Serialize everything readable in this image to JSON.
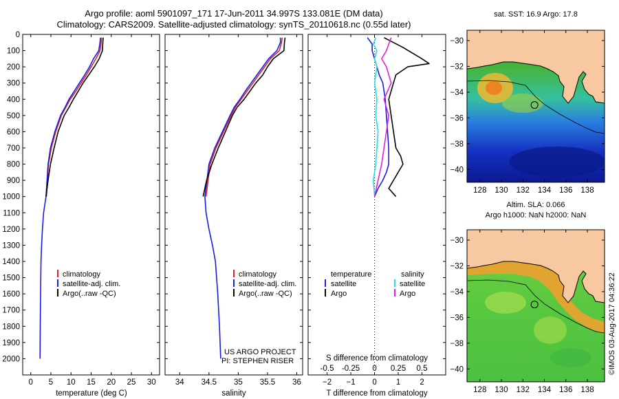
{
  "header": {
    "title_line1": "Argo profile: aoml 5901097_171 17-Jun-2011 34.997S 133.081E (DM data)",
    "title_line2": "Climatology: CARS2009. Satellite-adjusted climatology: synTS_20110618.nc (0.55d later)"
  },
  "colors": {
    "climatology": "#e02020",
    "satellite_temp": "#1a1ae6",
    "argo": "#000000",
    "satellite_sal": "#22e0e0",
    "argo_sal": "#e020e0",
    "land": "#f8c8a0"
  },
  "chart_data": [
    {
      "type": "line",
      "name": "temperature-profile",
      "xlabel": "temperature (deg C)",
      "ylabel": "",
      "xlim": [
        -2,
        32
      ],
      "ylim": [
        2100,
        0
      ],
      "xticks": [
        0,
        5,
        10,
        15,
        20,
        25,
        30
      ],
      "yticks": [
        0,
        100,
        200,
        300,
        400,
        500,
        600,
        700,
        800,
        900,
        1000,
        1100,
        1200,
        1300,
        1400,
        1500,
        1600,
        1700,
        1800,
        1900,
        2000
      ],
      "legend": [
        "climatology",
        "satellite-adj. clim.",
        "Argo(..raw -QC)"
      ],
      "series": [
        {
          "name": "climatology",
          "color_key": "climatology",
          "x": [
            17.6,
            17.5,
            17.2,
            16.2,
            15.0,
            13.8,
            12.5,
            11.2,
            9.8,
            8.7,
            7.6,
            6.2,
            5.1,
            4.4,
            3.9
          ],
          "y": [
            20,
            50,
            100,
            150,
            200,
            250,
            300,
            350,
            400,
            450,
            500,
            600,
            700,
            800,
            1000
          ]
        },
        {
          "name": "satellite-adj. clim.",
          "color_key": "satellite_temp",
          "x": [
            17.3,
            17.2,
            16.9,
            15.6,
            14.6,
            13.4,
            12.1,
            10.8,
            9.5,
            8.5,
            7.4,
            6.0,
            4.9,
            4.3,
            3.8,
            3.2,
            2.9,
            2.7,
            2.55,
            2.45,
            2.35,
            2.3
          ],
          "y": [
            20,
            50,
            100,
            150,
            200,
            250,
            300,
            350,
            400,
            450,
            500,
            600,
            700,
            800,
            1000,
            1100,
            1200,
            1300,
            1400,
            1600,
            1800,
            2000
          ]
        },
        {
          "name": "Argo(..raw -QC)",
          "color_key": "argo",
          "x": [
            18.0,
            17.9,
            17.8,
            17.0,
            15.8,
            14.4,
            13.0,
            11.8,
            10.6,
            9.5,
            8.3,
            6.8,
            5.8,
            4.9,
            4.3,
            3.8
          ],
          "y": [
            20,
            50,
            100,
            150,
            200,
            250,
            300,
            350,
            400,
            450,
            500,
            600,
            700,
            800,
            900,
            1000
          ]
        }
      ]
    },
    {
      "type": "line",
      "name": "salinity-profile",
      "xlabel": "salinity",
      "ylabel": "",
      "xlim": [
        33.75,
        36.1
      ],
      "ylim": [
        2100,
        0
      ],
      "xticks": [
        34,
        34.5,
        35,
        35.5,
        36
      ],
      "xtick_labels": [
        "34",
        "34.5",
        "35",
        "35.5",
        "36"
      ],
      "legend": [
        "climatology",
        "satellite-adj. clim.",
        "Argo(..raw -QC)"
      ],
      "annotation": [
        "US ARGO PROJECT",
        "PI: STEPHEN RISER"
      ],
      "series": [
        {
          "name": "climatology",
          "color_key": "climatology",
          "x": [
            35.75,
            35.74,
            35.7,
            35.55,
            35.45,
            35.35,
            35.25,
            35.15,
            35.05,
            34.95,
            34.88,
            34.75,
            34.62,
            34.52,
            34.45
          ],
          "y": [
            20,
            50,
            100,
            150,
            200,
            250,
            300,
            350,
            400,
            450,
            500,
            600,
            700,
            800,
            1000
          ]
        },
        {
          "name": "satellite-adj. clim.",
          "color_key": "satellite_temp",
          "x": [
            35.72,
            35.72,
            35.66,
            35.52,
            35.42,
            35.32,
            35.22,
            35.12,
            35.03,
            34.93,
            34.86,
            34.73,
            34.6,
            34.5,
            34.43,
            34.45,
            34.5,
            34.56,
            34.61,
            34.65,
            34.68,
            34.7
          ],
          "y": [
            20,
            50,
            100,
            150,
            200,
            250,
            300,
            350,
            400,
            450,
            500,
            600,
            700,
            800,
            1000,
            1100,
            1200,
            1300,
            1400,
            1600,
            1800,
            2000
          ]
        },
        {
          "name": "Argo(..raw -QC)",
          "color_key": "argo",
          "x": [
            35.8,
            35.79,
            35.78,
            35.6,
            35.5,
            35.42,
            35.3,
            35.2,
            35.1,
            34.98,
            34.9,
            34.78,
            34.66,
            34.55,
            34.46,
            34.4
          ],
          "y": [
            20,
            50,
            100,
            150,
            200,
            250,
            300,
            350,
            400,
            450,
            500,
            600,
            700,
            800,
            900,
            1000
          ]
        }
      ]
    },
    {
      "type": "line",
      "name": "difference-profile",
      "xlabel": "T difference from climatology",
      "xlabel2": "S difference from climatology",
      "xlim": [
        -2.8,
        3.0
      ],
      "ylim": [
        2100,
        0
      ],
      "xticks": [
        -2,
        -1,
        0,
        1,
        2
      ],
      "s_ticks": [
        -0.5,
        -0.25,
        0,
        0.25,
        0.5
      ],
      "s_tick_labels": [
        "-0.5",
        "-0.25",
        "0",
        "0.25",
        "0.5"
      ],
      "legend_groups": [
        {
          "title": "temperature",
          "entries": [
            "satellite",
            "Argo"
          ]
        },
        {
          "title": "salinity",
          "entries": [
            "satellite",
            "Argo"
          ]
        }
      ],
      "series": [
        {
          "name": "temperature satellite",
          "color_key": "satellite_temp",
          "x": [
            -0.3,
            -0.1,
            -0.1,
            0.0,
            0.1,
            0.2,
            0.35,
            0.45,
            0.5,
            0.55,
            0.6,
            0.6,
            0.6,
            0.5,
            0.35,
            0.15,
            0.0
          ],
          "y": [
            20,
            60,
            100,
            150,
            200,
            250,
            300,
            400,
            500,
            600,
            700,
            750,
            800,
            850,
            900,
            950,
            1000
          ]
        },
        {
          "name": "temperature Argo",
          "color_key": "argo",
          "x": [
            0.4,
            1.2,
            2.0,
            2.3,
            1.4,
            0.9,
            0.8,
            0.6,
            0.7,
            0.8,
            0.9,
            1.1,
            1.2,
            1.0,
            0.8,
            0.6,
            0.9
          ],
          "y": [
            20,
            80,
            150,
            180,
            200,
            250,
            300,
            400,
            500,
            600,
            700,
            750,
            800,
            850,
            900,
            950,
            1000
          ]
        },
        {
          "name": "salinity satellite",
          "color_key": "satellite_sal",
          "x": [
            0.05,
            -0.05,
            0.1,
            0.0,
            0.1,
            0.0,
            0.1,
            0.05,
            0.15,
            0.1,
            0.05,
            -0.05,
            0.0
          ],
          "y": [
            20,
            60,
            100,
            150,
            200,
            300,
            400,
            500,
            600,
            700,
            800,
            900,
            1000
          ]
        },
        {
          "name": "salinity Argo",
          "color_key": "argo_sal",
          "x": [
            0.7,
            0.6,
            0.5,
            0.3,
            0.5,
            0.7,
            0.4,
            0.6,
            0.5,
            0.4,
            0.3,
            0.15,
            0.0
          ],
          "y": [
            20,
            60,
            100,
            150,
            200,
            300,
            400,
            500,
            600,
            700,
            800,
            900,
            1000
          ]
        }
      ]
    }
  ],
  "maps": {
    "sst": {
      "title": "sat. SST: 16.9 Argo: 17.8",
      "lon_ticks": [
        128,
        130,
        132,
        134,
        136,
        138
      ],
      "lat_ticks": [
        -30,
        -32,
        -34,
        -36,
        -38,
        -40
      ]
    },
    "sla": {
      "title1": "Altim. SLA: 0.066",
      "title2": "Argo h1000: NaN h2000: NaN",
      "lon_ticks": [
        128,
        130,
        132,
        134,
        136,
        138
      ],
      "lat_ticks": [
        -30,
        -32,
        -34,
        -36,
        -38,
        -40
      ]
    },
    "float_position": {
      "lon": 133.081,
      "lat": -34.997
    }
  },
  "side_caption": "©IMOS 03-Aug-2017 04:36:22"
}
